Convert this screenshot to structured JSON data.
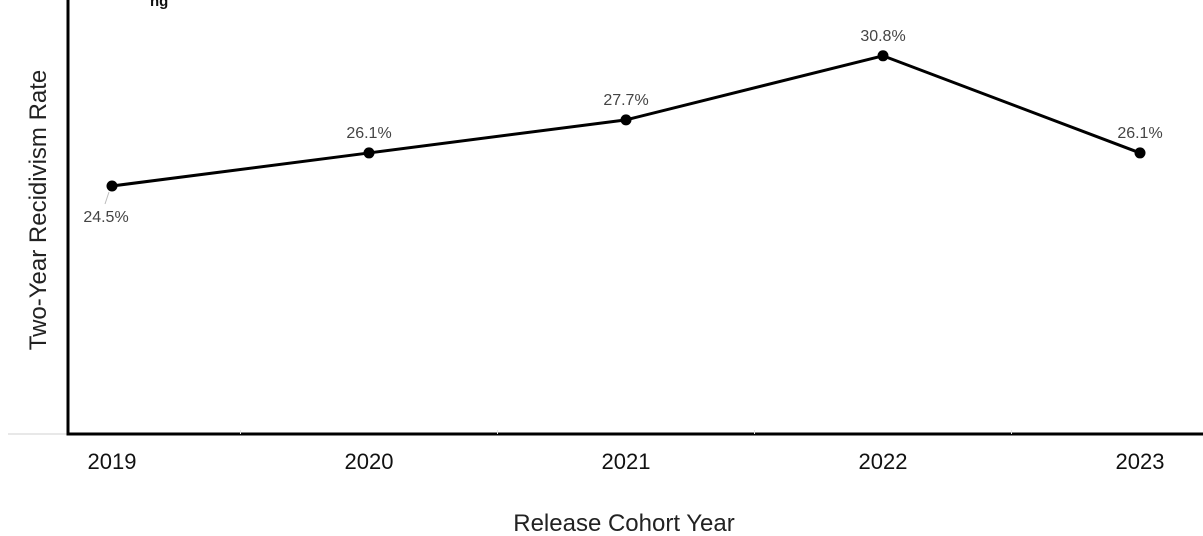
{
  "chart_data": {
    "type": "line",
    "title": "",
    "title_fragment": "ng",
    "xlabel": "Release Cohort Year",
    "ylabel": "Two-Year Recidivism Rate",
    "categories": [
      "2019",
      "2020",
      "2021",
      "2022",
      "2023"
    ],
    "series": [
      {
        "name": "",
        "values": [
          24.5,
          26.1,
          27.7,
          30.8,
          26.1
        ],
        "labels": [
          "24.5%",
          "26.1%",
          "27.7%",
          "30.8%",
          "26.1%"
        ]
      }
    ],
    "ylim": [
      12.5,
      33.5
    ],
    "grid": false,
    "legend": "none",
    "colors": {
      "line": "#000000",
      "axis": "#000000",
      "text": "#333333",
      "label_text": "#444444"
    }
  }
}
